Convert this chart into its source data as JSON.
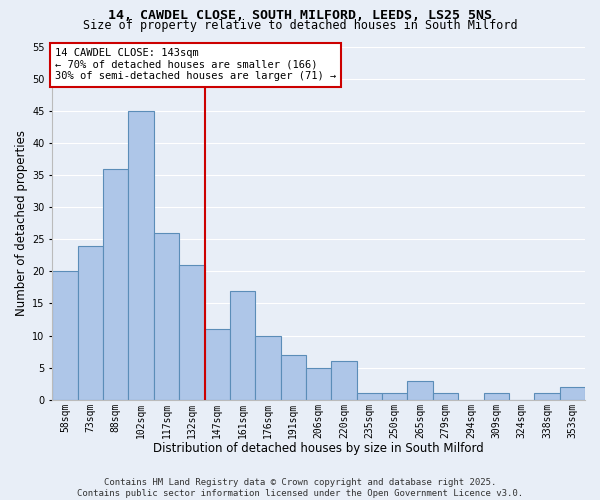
{
  "title_line1": "14, CAWDEL CLOSE, SOUTH MILFORD, LEEDS, LS25 5NS",
  "title_line2": "Size of property relative to detached houses in South Milford",
  "xlabel": "Distribution of detached houses by size in South Milford",
  "ylabel": "Number of detached properties",
  "categories": [
    "58sqm",
    "73sqm",
    "88sqm",
    "102sqm",
    "117sqm",
    "132sqm",
    "147sqm",
    "161sqm",
    "176sqm",
    "191sqm",
    "206sqm",
    "220sqm",
    "235sqm",
    "250sqm",
    "265sqm",
    "279sqm",
    "294sqm",
    "309sqm",
    "324sqm",
    "338sqm",
    "353sqm"
  ],
  "values": [
    20,
    24,
    36,
    45,
    26,
    21,
    11,
    17,
    10,
    7,
    5,
    6,
    1,
    1,
    3,
    1,
    0,
    1,
    0,
    1,
    2
  ],
  "bar_color": "#aec6e8",
  "bar_edge_color": "#5b8db8",
  "bar_edge_width": 0.8,
  "vline_x": 5.5,
  "vline_color": "#cc0000",
  "annotation_box_text": "14 CAWDEL CLOSE: 143sqm\n← 70% of detached houses are smaller (166)\n30% of semi-detached houses are larger (71) →",
  "annotation_box_color": "#ffffff",
  "annotation_box_edge_color": "#cc0000",
  "ylim": [
    0,
    55
  ],
  "yticks": [
    0,
    5,
    10,
    15,
    20,
    25,
    30,
    35,
    40,
    45,
    50,
    55
  ],
  "background_color": "#e8eef7",
  "grid_color": "#ffffff",
  "footer_text": "Contains HM Land Registry data © Crown copyright and database right 2025.\nContains public sector information licensed under the Open Government Licence v3.0.",
  "title_fontsize": 9.5,
  "subtitle_fontsize": 8.5,
  "axis_label_fontsize": 8.5,
  "tick_fontsize": 7,
  "annotation_fontsize": 7.5,
  "footer_fontsize": 6.5
}
